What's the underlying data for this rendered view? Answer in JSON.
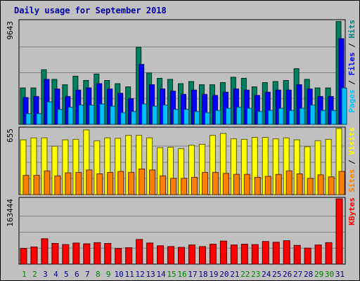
{
  "chart_data": {
    "type": "bar",
    "title": "Daily usage for September 2018",
    "categories": [
      "1",
      "2",
      "3",
      "4",
      "5",
      "6",
      "7",
      "8",
      "9",
      "10",
      "11",
      "12",
      "13",
      "14",
      "15",
      "16",
      "17",
      "18",
      "19",
      "20",
      "21",
      "22",
      "23",
      "24",
      "25",
      "26",
      "27",
      "28",
      "29",
      "30",
      "31"
    ],
    "weekend_days": [
      "1",
      "2",
      "8",
      "9",
      "15",
      "16",
      "22",
      "23",
      "29",
      "30"
    ],
    "panels": [
      {
        "name": "pages-files-hits",
        "max_label": "9643",
        "ymax": 9643,
        "series_labels": [
          {
            "text": "Pages",
            "color": "#00bfff"
          },
          {
            "text": "Files",
            "color": "#0000ff"
          },
          {
            "text": "Hits",
            "color": "#008080"
          }
        ],
        "series": [
          {
            "name": "Hits",
            "color": "#008060",
            "values": [
              3400,
              3400,
              5100,
              4200,
              3700,
              4500,
              4100,
              4700,
              4100,
              3800,
              3500,
              7200,
              4800,
              4300,
              4200,
              3800,
              4000,
              3700,
              3700,
              3900,
              4400,
              4300,
              3500,
              3900,
              4000,
              4100,
              5200,
              4200,
              3400,
              3400,
              9600
            ]
          },
          {
            "name": "Files",
            "color": "#0000ff",
            "values": [
              2500,
              2600,
              4200,
              3300,
              2600,
              3200,
              3400,
              3800,
              3300,
              2900,
              2400,
              5600,
              3700,
              3300,
              3100,
              2800,
              3200,
              2800,
              2700,
              3000,
              3300,
              3200,
              2700,
              3000,
              3200,
              3200,
              3700,
              3300,
              2600,
              2600,
              8000
            ]
          },
          {
            "name": "Pages",
            "color": "#00bfff",
            "values": [
              1000,
              1000,
              2100,
              1400,
              1600,
              1800,
              1800,
              1900,
              1700,
              1100,
              1200,
              1900,
              1700,
              1800,
              1400,
              1400,
              1200,
              1100,
              1300,
              1500,
              1600,
              1500,
              1200,
              1300,
              1500,
              1300,
              1500,
              1800,
              1300,
              1300,
              3400
            ]
          }
        ]
      },
      {
        "name": "visits-sites",
        "max_label": "655",
        "ymax": 655,
        "series_labels": [
          {
            "text": "Sites",
            "color": "#ff8000"
          },
          {
            "text": "Visits",
            "color": "#ffff00"
          }
        ],
        "series": [
          {
            "name": "Visits",
            "color": "#ffff00",
            "values": [
              555,
              575,
              575,
              490,
              555,
              560,
              655,
              545,
              575,
              570,
              600,
              600,
              575,
              475,
              480,
              465,
              500,
              510,
              600,
              620,
              565,
              560,
              580,
              580,
              565,
              575,
              555,
              485,
              545,
              560,
              670
            ]
          },
          {
            "name": "Sites",
            "color": "#ff8000",
            "values": [
              195,
              195,
              240,
              190,
              220,
              225,
              250,
              210,
              225,
              235,
              225,
              260,
              250,
              190,
              165,
              165,
              175,
              225,
              225,
              215,
              205,
              205,
              175,
              185,
              205,
              240,
              210,
              165,
              200,
              180,
              235
            ]
          }
        ]
      },
      {
        "name": "kbytes",
        "max_label": "163444",
        "ymax": 163444,
        "series_labels": [
          {
            "text": "KBytes",
            "color": "#ff0000"
          }
        ],
        "series": [
          {
            "name": "KBytes",
            "color": "#ff0000",
            "values": [
              40000,
              44000,
              65000,
              53000,
              50000,
              54000,
              52000,
              55000,
              53000,
              40000,
              42000,
              63000,
              54000,
              47000,
              45000,
              43000,
              49000,
              45000,
              51000,
              59000,
              49000,
              51000,
              50000,
              58000,
              56000,
              60000,
              48000,
              41000,
              49000,
              55000,
              167000
            ]
          }
        ]
      }
    ]
  }
}
